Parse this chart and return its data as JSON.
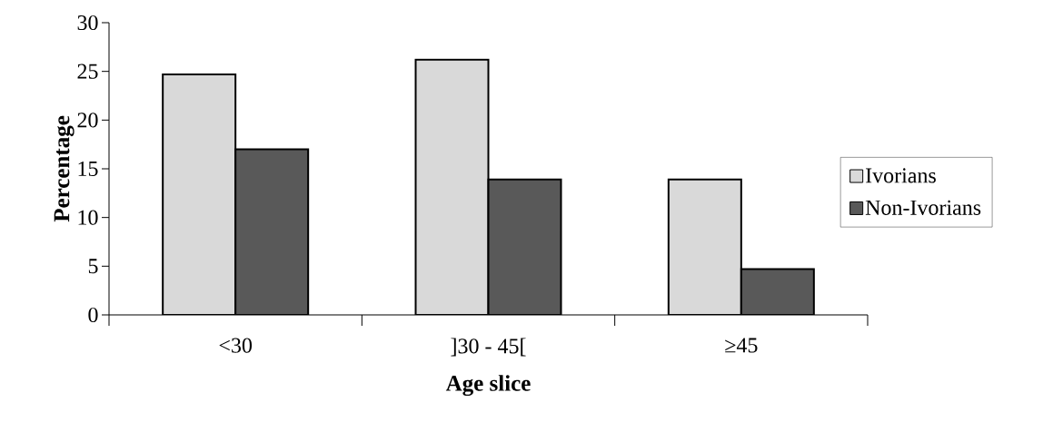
{
  "chart_data": {
    "type": "bar",
    "xlabel": "Age slice",
    "ylabel": "Percentage",
    "categories": [
      "<30",
      "]30 - 45[",
      "≥45"
    ],
    "series": [
      {
        "name": "Ivorians",
        "color": "#d9d9d9",
        "values": [
          24.7,
          26.2,
          13.9
        ]
      },
      {
        "name": "Non-Ivorians",
        "color": "#595959",
        "values": [
          17.0,
          13.9,
          4.7
        ]
      }
    ],
    "ylim": [
      0,
      30
    ],
    "yticks": [
      0,
      5,
      10,
      15,
      20,
      25,
      30
    ],
    "grid": false,
    "legend": "right"
  }
}
